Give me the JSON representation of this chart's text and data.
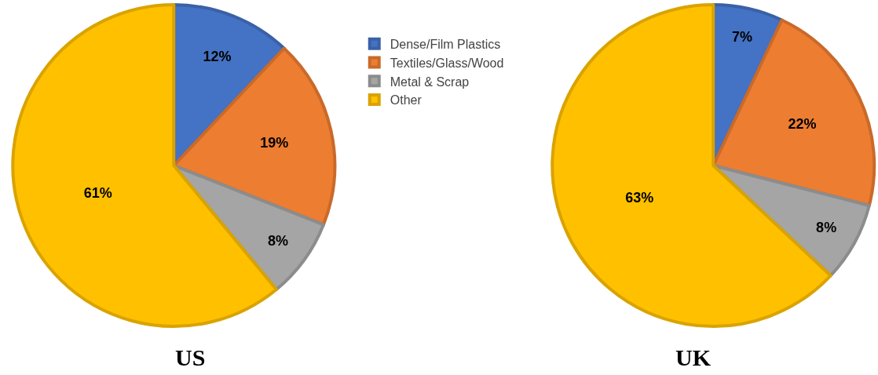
{
  "chart_data": [
    {
      "type": "pie",
      "title": "US",
      "categories": [
        "Dense/Film Plastics",
        "Textiles/Glass/Wood",
        "Metal & Scrap",
        "Other"
      ],
      "values": [
        12,
        19,
        8,
        61
      ],
      "colors": [
        "#4472c4",
        "#ed7d31",
        "#a5a5a5",
        "#ffc000"
      ],
      "value_labels": [
        "12%",
        "19%",
        "8%",
        "61%"
      ],
      "legend": "right"
    },
    {
      "type": "pie",
      "title": "UK",
      "categories": [
        null,
        null,
        null,
        null
      ],
      "values": [
        7,
        22,
        8,
        63
      ],
      "colors": [
        "#4472c4",
        "#ed7d31",
        "#a5a5a5",
        "#ffc000"
      ],
      "value_labels": [
        "7%",
        "22%",
        "8%",
        "63%"
      ],
      "legend": false
    }
  ]
}
